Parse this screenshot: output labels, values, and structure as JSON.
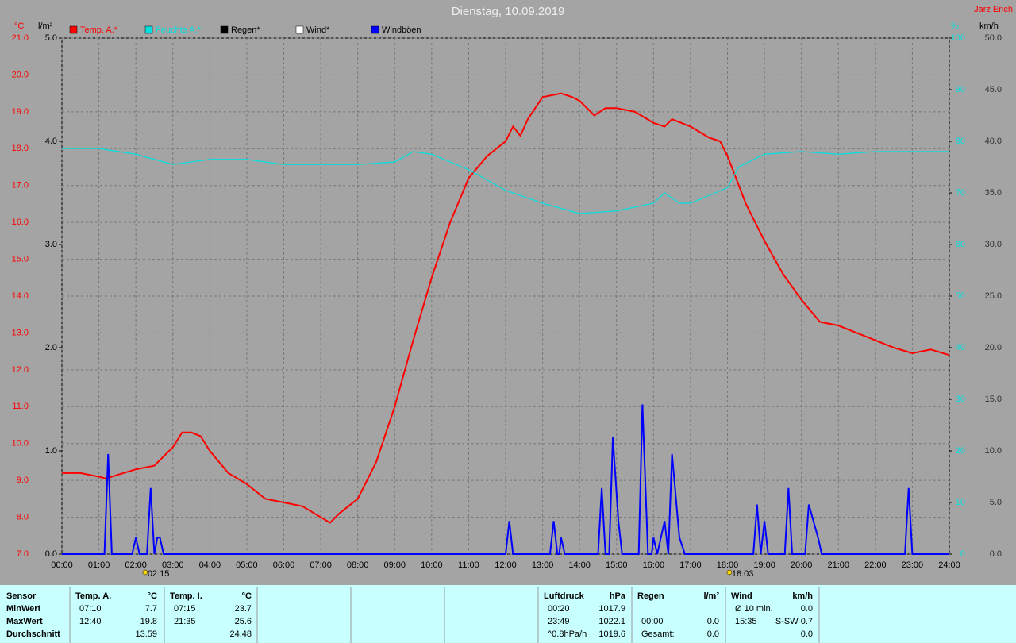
{
  "chart_data": {
    "type": "line",
    "title": "Dienstag, 10.09.2019",
    "author": "Jarz Erich",
    "y_unit": "°C",
    "y3_unit": "l/m²",
    "y2_unit": "%",
    "y4_unit": "km/h",
    "xlim": [
      0,
      24
    ],
    "xticks": [
      {
        "value": 0,
        "label": "00:00"
      },
      {
        "value": 1,
        "label": "01:00"
      },
      {
        "value": 2,
        "label": "02:00"
      },
      {
        "value": 3,
        "label": "03:00"
      },
      {
        "value": 4,
        "label": "04:00"
      },
      {
        "value": 5,
        "label": "05:00"
      },
      {
        "value": 6,
        "label": "06:00"
      },
      {
        "value": 7,
        "label": "07:00"
      },
      {
        "value": 8,
        "label": "08:00"
      },
      {
        "value": 9,
        "label": "09:00"
      },
      {
        "value": 10,
        "label": "10:00"
      },
      {
        "value": 11,
        "label": "11:00"
      },
      {
        "value": 12,
        "label": "12:00"
      },
      {
        "value": 13,
        "label": "13:00"
      },
      {
        "value": 14,
        "label": "14:00"
      },
      {
        "value": 15,
        "label": "15:00"
      },
      {
        "value": 16,
        "label": "16:00"
      },
      {
        "value": 17,
        "label": "17:00"
      },
      {
        "value": 18,
        "label": "18:00"
      },
      {
        "value": 19,
        "label": "19:00"
      },
      {
        "value": 20,
        "label": "20:00"
      },
      {
        "value": 21,
        "label": "21:00"
      },
      {
        "value": 22,
        "label": "22:00"
      },
      {
        "value": 23,
        "label": "23:00"
      },
      {
        "value": 24,
        "label": "24:00"
      }
    ],
    "ylim": [
      7,
      21
    ],
    "yticks": [
      {
        "value": 7,
        "label": "7.0"
      },
      {
        "value": 8,
        "label": "8.0"
      },
      {
        "value": 9,
        "label": "9.0"
      },
      {
        "value": 10,
        "label": "10.0"
      },
      {
        "value": 11,
        "label": "11.0"
      },
      {
        "value": 12,
        "label": "12.0"
      },
      {
        "value": 13,
        "label": "13.0"
      },
      {
        "value": 14,
        "label": "14.0"
      },
      {
        "value": 15,
        "label": "15.0"
      },
      {
        "value": 16,
        "label": "16.0"
      },
      {
        "value": 17,
        "label": "17.0"
      },
      {
        "value": 18,
        "label": "18.0"
      },
      {
        "value": 19,
        "label": "19.0"
      },
      {
        "value": 20,
        "label": "20.0"
      },
      {
        "value": 21,
        "label": "21.0"
      }
    ],
    "y3lim": [
      0,
      5
    ],
    "y3ticks": [
      {
        "value": 0,
        "label": "0.0"
      },
      {
        "value": 1,
        "label": "1.0"
      },
      {
        "value": 2,
        "label": "2.0"
      },
      {
        "value": 3,
        "label": "3.0"
      },
      {
        "value": 4,
        "label": "4.0"
      },
      {
        "value": 5,
        "label": "5.0"
      }
    ],
    "y2lim": [
      0,
      100
    ],
    "y2ticks": [
      0,
      10,
      20,
      30,
      40,
      50,
      60,
      70,
      80,
      90,
      100
    ],
    "y4lim": [
      0,
      50
    ],
    "y4ticks": [
      {
        "value": 0,
        "label": "0.0"
      },
      {
        "value": 5,
        "label": "5.0"
      },
      {
        "value": 10,
        "label": "10.0"
      },
      {
        "value": 15,
        "label": "15.0"
      },
      {
        "value": 20,
        "label": "20.0"
      },
      {
        "value": 25,
        "label": "25.0"
      },
      {
        "value": 30,
        "label": "30.0"
      },
      {
        "value": 35,
        "label": "35.0"
      },
      {
        "value": 40,
        "label": "40.0"
      },
      {
        "value": 45,
        "label": "45.0"
      },
      {
        "value": 50,
        "label": "50.0"
      }
    ],
    "grid": true,
    "markers": [
      {
        "value": 2.25,
        "label": "02:15"
      },
      {
        "value": 18.05,
        "label": "18:03"
      }
    ],
    "series": [
      {
        "name": "Temp. A.*",
        "color": "#ff0000",
        "axis": "y",
        "x": [
          0,
          0.5,
          1,
          1.2,
          1.5,
          2,
          2.5,
          3,
          3.25,
          3.5,
          3.75,
          4,
          4.5,
          5,
          5.5,
          6,
          6.5,
          7,
          7.25,
          7.5,
          8,
          8.5,
          9,
          9.5,
          10,
          10.5,
          11,
          11.5,
          12,
          12.2,
          12.4,
          12.6,
          13,
          13.5,
          13.8,
          14,
          14.4,
          14.7,
          15,
          15.5,
          16,
          16.3,
          16.5,
          17,
          17.5,
          17.8,
          18,
          18.5,
          19,
          19.5,
          20,
          20.5,
          21,
          21.5,
          22,
          22.5,
          23,
          23.5,
          24
        ],
        "values": [
          9.2,
          9.2,
          9.1,
          9.05,
          9.15,
          9.3,
          9.4,
          9.9,
          10.3,
          10.3,
          10.2,
          9.8,
          9.2,
          8.9,
          8.5,
          8.4,
          8.3,
          8.0,
          7.85,
          8.1,
          8.5,
          9.5,
          11.0,
          12.8,
          14.5,
          16.0,
          17.2,
          17.8,
          18.2,
          18.6,
          18.35,
          18.8,
          19.4,
          19.5,
          19.4,
          19.3,
          18.9,
          19.1,
          19.1,
          19.0,
          18.7,
          18.6,
          18.8,
          18.6,
          18.3,
          18.2,
          17.8,
          16.5,
          15.5,
          14.6,
          13.9,
          13.3,
          13.2,
          13.0,
          12.8,
          12.6,
          12.45,
          12.55,
          12.4
        ]
      },
      {
        "name": "Feuchte A.*",
        "color": "#00e0e0",
        "axis": "y2",
        "x": [
          0,
          1,
          2,
          3,
          4,
          5,
          6,
          7,
          8,
          9,
          9.5,
          10,
          11,
          12,
          13,
          14,
          15,
          16,
          16.3,
          16.7,
          17,
          17.5,
          18,
          18.3,
          19,
          20,
          21,
          22,
          23,
          24
        ],
        "values": [
          78.6,
          78.6,
          77.5,
          75.5,
          76.5,
          76.5,
          75.5,
          75.5,
          75.5,
          76,
          78,
          77.5,
          74.5,
          70.5,
          68,
          66,
          66.5,
          68,
          70,
          68,
          68,
          69.5,
          71,
          75,
          77.5,
          78,
          77.5,
          78,
          78,
          78
        ]
      },
      {
        "name": "Regen*",
        "color": "#000000",
        "axis": "y3",
        "x": [],
        "values": []
      },
      {
        "name": "Wind*",
        "color": "#ffffff",
        "axis": "y4",
        "x": [],
        "values": []
      },
      {
        "name": "Windböen",
        "color": "#0000ff",
        "axis": "y4",
        "x": [
          0,
          1.15,
          1.25,
          1.35,
          1.9,
          2.0,
          2.1,
          2.3,
          2.4,
          2.5,
          2.58,
          2.65,
          2.75,
          12.0,
          12.1,
          12.2,
          13.2,
          13.3,
          13.4,
          13.45,
          13.5,
          13.6,
          14.5,
          14.6,
          14.7,
          14.8,
          14.9,
          15.05,
          15.15,
          15.6,
          15.7,
          15.85,
          15.95,
          16.0,
          16.1,
          16.2,
          16.3,
          16.4,
          16.5,
          16.7,
          16.85,
          18.7,
          18.8,
          18.9,
          19.0,
          19.1,
          19.55,
          19.65,
          19.75,
          20.1,
          20.2,
          20.45,
          20.55,
          22.8,
          22.9,
          23.0,
          24
        ],
        "values": [
          0,
          0,
          9.7,
          0,
          0,
          1.6,
          0,
          0,
          6.4,
          0,
          1.6,
          1.6,
          0,
          0,
          3.2,
          0,
          0,
          3.2,
          0,
          0,
          1.6,
          0,
          0,
          6.4,
          0,
          0,
          11.3,
          3.2,
          0,
          0,
          14.5,
          0,
          0,
          1.6,
          0,
          1.6,
          3.2,
          0,
          9.7,
          1.6,
          0,
          0,
          4.8,
          0,
          3.2,
          0,
          0,
          6.4,
          0,
          0,
          4.8,
          1.6,
          0,
          0,
          6.4,
          0,
          0
        ]
      }
    ]
  },
  "table": {
    "row_labels": [
      "Sensor",
      "MinWert",
      "MaxWert",
      "Durchschnitt"
    ],
    "groups": [
      {
        "header": [
          "Temp. A.",
          "°C"
        ],
        "rows": [
          [
            "07:10",
            "7.7"
          ],
          [
            "12:40",
            "19.8"
          ],
          [
            null,
            "13.59"
          ]
        ]
      },
      {
        "header": [
          "Temp. I.",
          "°C"
        ],
        "rows": [
          [
            "07:15",
            "23.7"
          ],
          [
            "21:35",
            "25.6"
          ],
          [
            null,
            "24.48"
          ]
        ]
      },
      {
        "header": [
          "Luftdruck",
          "hPa"
        ],
        "rows": [
          [
            "00:20",
            "1017.9"
          ],
          [
            "23:49",
            "1022.1"
          ],
          [
            "^0.8hPa/h",
            "1019.6"
          ]
        ]
      },
      {
        "header": [
          "Regen",
          "l/m²"
        ],
        "rows": [
          [
            null,
            null
          ],
          [
            "00:00",
            "0.0"
          ],
          [
            "Gesamt:",
            "0.0"
          ]
        ]
      },
      {
        "header": [
          "Wind",
          "km/h"
        ],
        "rows": [
          [
            "Ø 10 min.",
            "0.0"
          ],
          [
            "15:35",
            "S-SW 0.7"
          ],
          [
            null,
            "0.0"
          ]
        ]
      }
    ]
  }
}
